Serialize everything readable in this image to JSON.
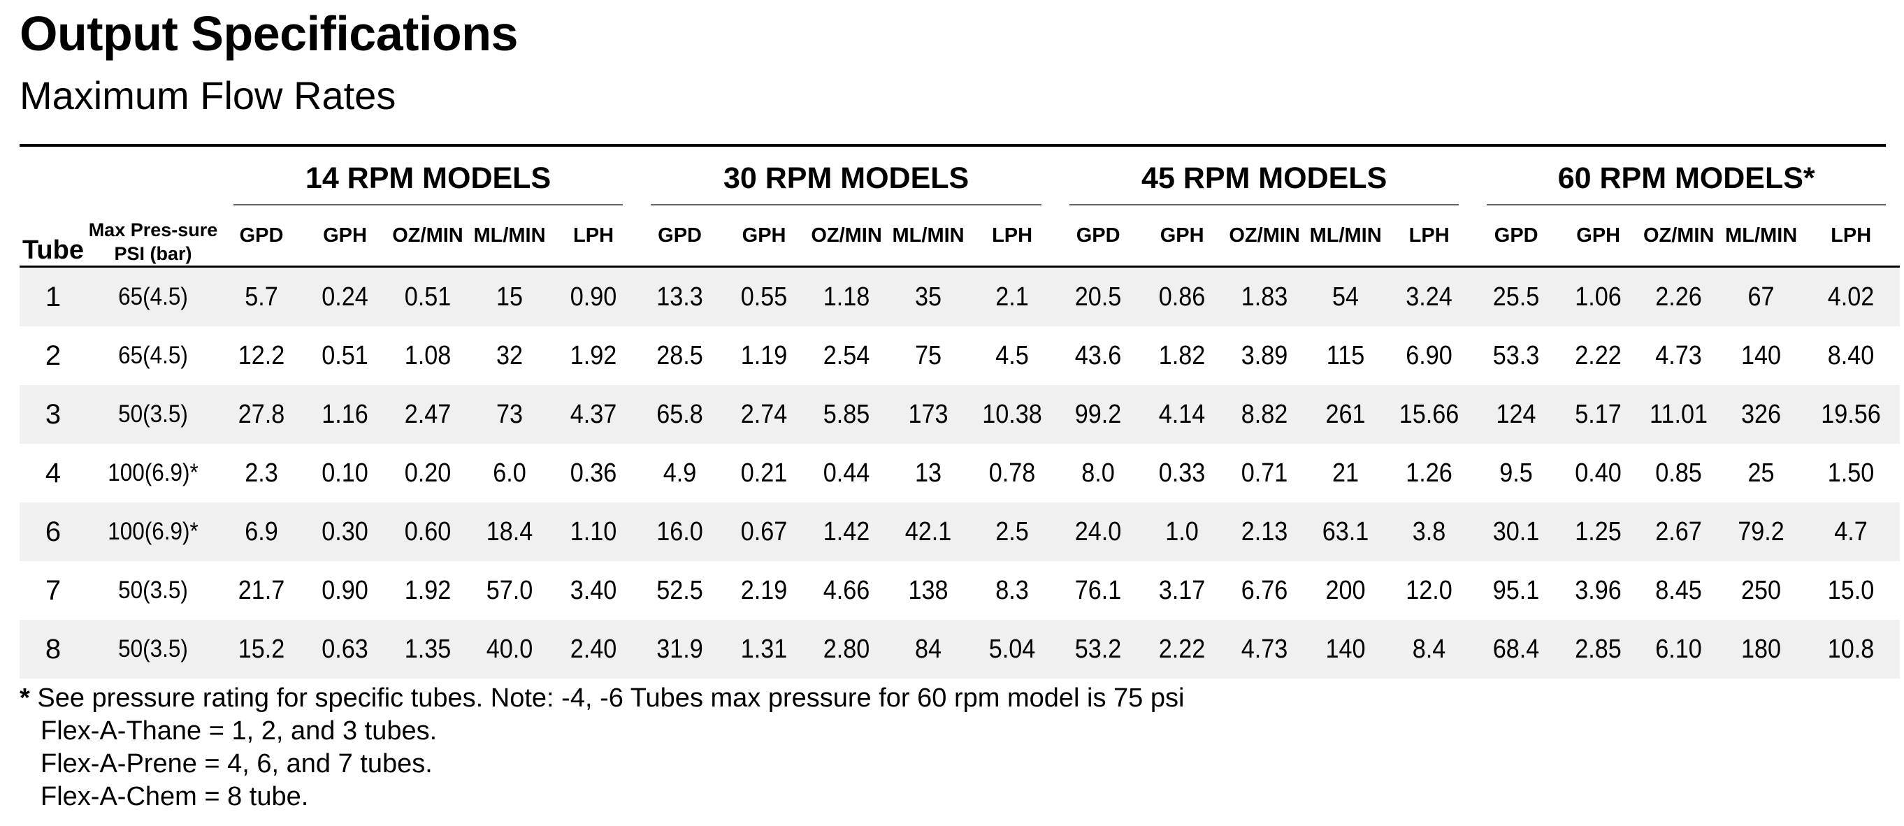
{
  "title": "Output Specifications",
  "subtitle": "Maximum Flow Rates",
  "table": {
    "tube_header": "Tube",
    "pressure_header": "Max Pres-sure PSI (bar)",
    "groups": [
      "14 RPM MODELS",
      "30 RPM MODELS",
      "45 RPM MODELS",
      "60 RPM MODELS*"
    ],
    "units": [
      "GPD",
      "GPH",
      "OZ/MIN",
      "ML/MIN",
      "LPH"
    ],
    "rows": [
      {
        "tube": "1",
        "pressure": "65(4.5)",
        "values": [
          "5.7",
          "0.24",
          "0.51",
          "15",
          "0.90",
          "13.3",
          "0.55",
          "1.18",
          "35",
          "2.1",
          "20.5",
          "0.86",
          "1.83",
          "54",
          "3.24",
          "25.5",
          "1.06",
          "2.26",
          "67",
          "4.02"
        ]
      },
      {
        "tube": "2",
        "pressure": "65(4.5)",
        "values": [
          "12.2",
          "0.51",
          "1.08",
          "32",
          "1.92",
          "28.5",
          "1.19",
          "2.54",
          "75",
          "4.5",
          "43.6",
          "1.82",
          "3.89",
          "115",
          "6.90",
          "53.3",
          "2.22",
          "4.73",
          "140",
          "8.40"
        ]
      },
      {
        "tube": "3",
        "pressure": "50(3.5)",
        "values": [
          "27.8",
          "1.16",
          "2.47",
          "73",
          "4.37",
          "65.8",
          "2.74",
          "5.85",
          "173",
          "10.38",
          "99.2",
          "4.14",
          "8.82",
          "261",
          "15.66",
          "124",
          "5.17",
          "11.01",
          "326",
          "19.56"
        ]
      },
      {
        "tube": "4",
        "pressure": "100(6.9)*",
        "values": [
          "2.3",
          "0.10",
          "0.20",
          "6.0",
          "0.36",
          "4.9",
          "0.21",
          "0.44",
          "13",
          "0.78",
          "8.0",
          "0.33",
          "0.71",
          "21",
          "1.26",
          "9.5",
          "0.40",
          "0.85",
          "25",
          "1.50"
        ]
      },
      {
        "tube": "6",
        "pressure": "100(6.9)*",
        "values": [
          "6.9",
          "0.30",
          "0.60",
          "18.4",
          "1.10",
          "16.0",
          "0.67",
          "1.42",
          "42.1",
          "2.5",
          "24.0",
          "1.0",
          "2.13",
          "63.1",
          "3.8",
          "30.1",
          "1.25",
          "2.67",
          "79.2",
          "4.7"
        ]
      },
      {
        "tube": "7",
        "pressure": "50(3.5)",
        "values": [
          "21.7",
          "0.90",
          "1.92",
          "57.0",
          "3.40",
          "52.5",
          "2.19",
          "4.66",
          "138",
          "8.3",
          "76.1",
          "3.17",
          "6.76",
          "200",
          "12.0",
          "95.1",
          "3.96",
          "8.45",
          "250",
          "15.0"
        ]
      },
      {
        "tube": "8",
        "pressure": "50(3.5)",
        "values": [
          "15.2",
          "0.63",
          "1.35",
          "40.0",
          "2.40",
          "31.9",
          "1.31",
          "2.80",
          "84",
          "5.04",
          "53.2",
          "2.22",
          "4.73",
          "140",
          "8.4",
          "68.4",
          "2.85",
          "6.10",
          "180",
          "10.8"
        ]
      }
    ]
  },
  "notes": {
    "asterisk": "*",
    "main": "See pressure rating for specific tubes. Note: -4, -6 Tubes max pressure for 60 rpm model is 75 psi",
    "lines": [
      "Flex-A-Thane = 1, 2, and 3 tubes.",
      "Flex-A-Prene = 4, 6, and 7 tubes.",
      "Flex-A-Chem = 8 tube."
    ]
  }
}
